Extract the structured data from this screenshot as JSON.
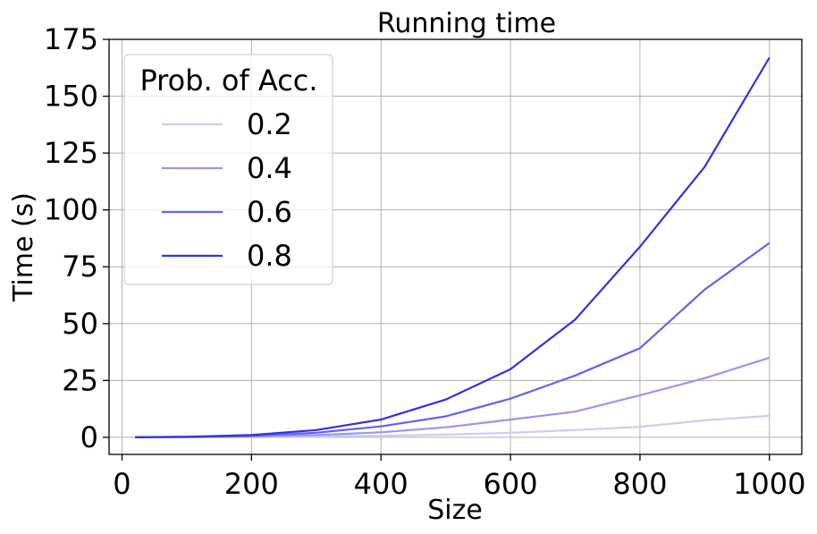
{
  "chart_data": {
    "type": "line",
    "title": "Running time",
    "xlabel": "Size",
    "ylabel": "Time (s)",
    "xlim": [
      -20,
      1050
    ],
    "ylim": [
      -7.5,
      175
    ],
    "xticks": [
      0,
      200,
      400,
      600,
      800,
      1000
    ],
    "yticks": [
      0,
      25,
      50,
      75,
      100,
      125,
      150,
      175
    ],
    "grid": true,
    "legend": {
      "title": "Prob. of Acc.",
      "position": "top-left"
    },
    "x": [
      20,
      100,
      200,
      300,
      400,
      500,
      600,
      700,
      800,
      900,
      1000
    ],
    "series": [
      {
        "name": "0.2",
        "color": "#cccbf5",
        "values": [
          0.0,
          0.05,
          0.15,
          0.4,
          0.7,
          1.2,
          2.0,
          3.2,
          4.6,
          7.5,
          9.5
        ]
      },
      {
        "name": "0.4",
        "color": "#9897f0",
        "values": [
          0.0,
          0.1,
          0.4,
          1.0,
          2.2,
          4.4,
          7.8,
          11.3,
          18.5,
          26.0,
          35.0
        ]
      },
      {
        "name": "0.6",
        "color": "#6463eb",
        "values": [
          0.0,
          0.2,
          0.7,
          2.0,
          4.8,
          9.2,
          17.0,
          27.2,
          39.2,
          65.0,
          85.5
        ]
      },
      {
        "name": "0.8",
        "color": "#3230e3",
        "values": [
          0.0,
          0.25,
          1.0,
          3.2,
          7.8,
          16.6,
          30.0,
          51.8,
          83.8,
          119.0,
          167.0
        ]
      }
    ]
  }
}
